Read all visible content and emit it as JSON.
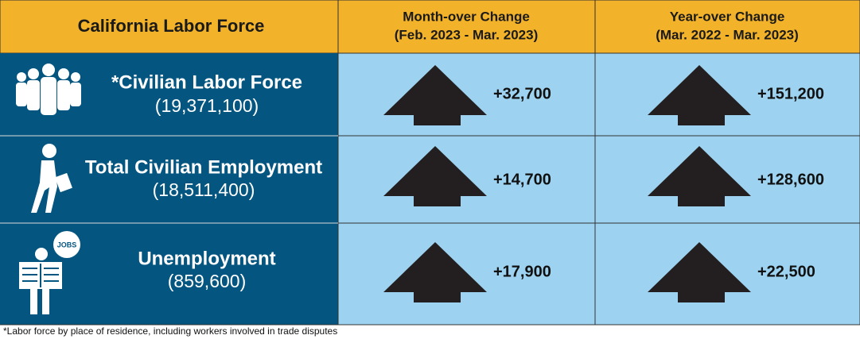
{
  "header": {
    "title": "California Labor Force",
    "columns": [
      [
        "Month-over Change",
        "(Feb. 2023 - Mar. 2023)"
      ],
      [
        "Year-over Change",
        "(Mar. 2022 - Mar. 2023)"
      ]
    ]
  },
  "rows": [
    {
      "label": "*Civilian Labor Force",
      "value": "(19,371,100)",
      "month": "+32,700",
      "year": "+151,200"
    },
    {
      "label": "Total Civilian Employment",
      "value": "(18,511,400)",
      "month": "+14,700",
      "year": "+128,600"
    },
    {
      "label": "Unemployment",
      "value": "(859,600)",
      "month": "+17,900",
      "year": "+22,500",
      "icon_text": "JOBS"
    }
  ],
  "footnote": "*Labor force by place of residence, including workers involved in trade disputes"
}
